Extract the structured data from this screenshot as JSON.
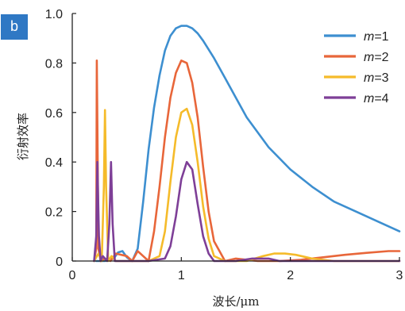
{
  "panel_label": "b",
  "chart_data": {
    "type": "line",
    "xlabel": "波长/μm",
    "ylabel": "衍射效率",
    "xlim": [
      0,
      3
    ],
    "ylim": [
      0,
      1.0
    ],
    "xticks": [
      "0",
      "1",
      "2",
      "3"
    ],
    "yticks": [
      "0",
      "0.2",
      "0.4",
      "0.6",
      "0.8",
      "1.0"
    ],
    "grid": false,
    "legend_position": "top-right",
    "series": [
      {
        "name": "m=1",
        "legend_letter": "m",
        "legend_suffix": "=1",
        "color": "#3d8fd0",
        "x": [
          0.22,
          0.3,
          0.38,
          0.42,
          0.46,
          0.5,
          0.55,
          0.6,
          0.65,
          0.7,
          0.75,
          0.8,
          0.85,
          0.9,
          0.95,
          1.0,
          1.05,
          1.1,
          1.15,
          1.2,
          1.3,
          1.4,
          1.5,
          1.6,
          1.8,
          2.0,
          2.2,
          2.4,
          2.6,
          2.8,
          3.0
        ],
        "y": [
          0.0,
          0.0,
          0.01,
          0.035,
          0.04,
          0.015,
          0.0,
          0.05,
          0.24,
          0.45,
          0.62,
          0.75,
          0.85,
          0.91,
          0.94,
          0.95,
          0.95,
          0.94,
          0.92,
          0.89,
          0.82,
          0.74,
          0.66,
          0.58,
          0.46,
          0.37,
          0.3,
          0.24,
          0.2,
          0.16,
          0.12
        ]
      },
      {
        "name": "m=2",
        "legend_letter": "m",
        "legend_suffix": "=2",
        "color": "#e8663a",
        "x": [
          0.2,
          0.22,
          0.225,
          0.24,
          0.26,
          0.3,
          0.35,
          0.4,
          0.5,
          0.55,
          0.6,
          0.65,
          0.7,
          0.75,
          0.8,
          0.85,
          0.9,
          0.95,
          1.0,
          1.05,
          1.1,
          1.15,
          1.2,
          1.25,
          1.3,
          1.4,
          1.5,
          1.7,
          1.9,
          2.1,
          2.3,
          2.5,
          2.7,
          2.9,
          3.0
        ],
        "y": [
          0.0,
          0.05,
          0.81,
          0.05,
          0.0,
          0.01,
          0.0,
          0.03,
          0.02,
          0.0,
          0.04,
          0.02,
          0.0,
          0.12,
          0.3,
          0.5,
          0.66,
          0.76,
          0.81,
          0.8,
          0.72,
          0.58,
          0.38,
          0.2,
          0.08,
          0.0,
          0.01,
          0.0,
          0.0,
          0.005,
          0.015,
          0.025,
          0.033,
          0.04,
          0.04
        ]
      },
      {
        "name": "m=3",
        "legend_letter": "m",
        "legend_suffix": "=3",
        "color": "#f5bb2a",
        "x": [
          0.2,
          0.24,
          0.27,
          0.29,
          0.3,
          0.31,
          0.33,
          0.36,
          0.4,
          0.6,
          0.7,
          0.8,
          0.85,
          0.9,
          0.95,
          1.0,
          1.05,
          1.1,
          1.15,
          1.2,
          1.25,
          1.3,
          1.4,
          1.6,
          1.75,
          1.85,
          1.95,
          2.05,
          2.2,
          2.4,
          2.6,
          2.8,
          3.0
        ],
        "y": [
          0.0,
          0.03,
          0.0,
          0.3,
          0.61,
          0.3,
          0.0,
          0.02,
          0.0,
          0.0,
          0.0,
          0.02,
          0.12,
          0.32,
          0.5,
          0.6,
          0.615,
          0.55,
          0.4,
          0.22,
          0.09,
          0.02,
          0.0,
          0.0,
          0.02,
          0.03,
          0.03,
          0.025,
          0.01,
          0.0,
          0.0,
          0.0,
          0.0
        ]
      },
      {
        "name": "m=4",
        "legend_letter": "m",
        "legend_suffix": "=4",
        "color": "#7e3f97",
        "x": [
          0.2,
          0.22,
          0.23,
          0.245,
          0.26,
          0.28,
          0.32,
          0.34,
          0.355,
          0.37,
          0.39,
          0.45,
          0.7,
          0.85,
          0.9,
          0.95,
          1.0,
          1.05,
          1.1,
          1.15,
          1.2,
          1.25,
          1.3,
          1.4,
          1.5,
          1.65,
          1.8,
          1.9,
          2.2,
          2.6,
          3.0
        ],
        "y": [
          0.0,
          0.1,
          0.4,
          0.1,
          0.0,
          0.02,
          0.0,
          0.15,
          0.4,
          0.15,
          0.0,
          0.0,
          0.0,
          0.01,
          0.06,
          0.18,
          0.33,
          0.4,
          0.37,
          0.23,
          0.1,
          0.03,
          0.0,
          0.0,
          0.0,
          0.01,
          0.01,
          0.0,
          0.0,
          0.0,
          0.0
        ]
      }
    ]
  }
}
